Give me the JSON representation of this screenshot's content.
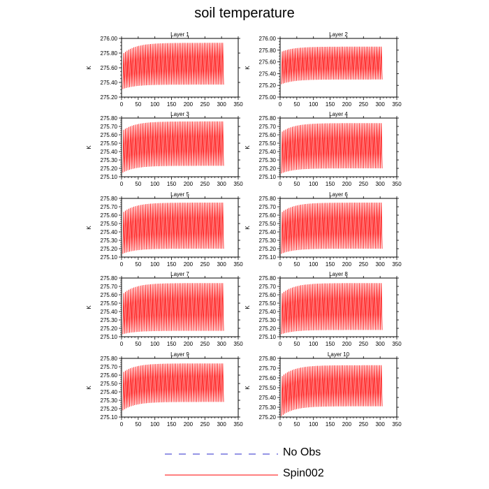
{
  "figure": {
    "title": "soil temperature"
  },
  "legend": [
    {
      "name": "No Obs",
      "color": "#2b2bcc",
      "style": "dashed"
    },
    {
      "name": "Spin002",
      "color": "#ff0000",
      "style": "solid"
    }
  ],
  "chart_data": [
    {
      "type": "line",
      "title": "Layer 1",
      "ylabel": "K",
      "xlim": [
        0,
        350
      ],
      "ylim": [
        275.2,
        276.0
      ],
      "x_ticks": [
        "0",
        "50",
        "100",
        "150",
        "200",
        "250",
        "300",
        "350"
      ],
      "y_ticks": [
        "275.20",
        "275.40",
        "275.60",
        "275.80",
        "276.00"
      ],
      "series": [
        {
          "name": "Spin002",
          "cycles": 60,
          "x_end": 306,
          "low_start": 275.31,
          "low_end": 275.37,
          "high_start": 275.8,
          "high_end": 275.94
        }
      ]
    },
    {
      "type": "line",
      "title": "Layer 2",
      "ylabel": "K",
      "xlim": [
        0,
        350
      ],
      "ylim": [
        275.0,
        276.0
      ],
      "x_ticks": [
        "0",
        "50",
        "100",
        "150",
        "200",
        "250",
        "300",
        "350"
      ],
      "y_ticks": [
        "275.00",
        "275.20",
        "275.40",
        "275.60",
        "275.80",
        "276.00"
      ],
      "series": [
        {
          "name": "Spin002",
          "cycles": 60,
          "x_end": 306,
          "low_start": 275.22,
          "low_end": 275.3,
          "high_start": 275.78,
          "high_end": 275.86
        }
      ]
    },
    {
      "type": "line",
      "title": "Layer 3",
      "ylabel": "K",
      "xlim": [
        0,
        350
      ],
      "ylim": [
        275.1,
        275.8
      ],
      "x_ticks": [
        "0",
        "50",
        "100",
        "150",
        "200",
        "250",
        "300",
        "350"
      ],
      "y_ticks": [
        "275.10",
        "275.20",
        "275.30",
        "275.40",
        "275.50",
        "275.60",
        "275.70",
        "275.80"
      ],
      "series": [
        {
          "name": "Spin002",
          "cycles": 60,
          "x_end": 306,
          "low_start": 275.15,
          "low_end": 275.23,
          "high_start": 275.66,
          "high_end": 275.76
        }
      ]
    },
    {
      "type": "line",
      "title": "Layer 4",
      "ylabel": "K",
      "xlim": [
        0,
        350
      ],
      "ylim": [
        275.1,
        275.8
      ],
      "x_ticks": [
        "0",
        "50",
        "100",
        "150",
        "200",
        "250",
        "300",
        "350"
      ],
      "y_ticks": [
        "275.10",
        "275.20",
        "275.30",
        "275.40",
        "275.50",
        "275.60",
        "275.70",
        "275.80"
      ],
      "series": [
        {
          "name": "Spin002",
          "cycles": 60,
          "x_end": 306,
          "low_start": 275.14,
          "low_end": 275.2,
          "high_start": 275.64,
          "high_end": 275.74
        }
      ]
    },
    {
      "type": "line",
      "title": "Layer 5",
      "ylabel": "K",
      "xlim": [
        0,
        350
      ],
      "ylim": [
        275.1,
        275.8
      ],
      "x_ticks": [
        "0",
        "50",
        "100",
        "150",
        "200",
        "250",
        "300",
        "350"
      ],
      "y_ticks": [
        "275.10",
        "275.20",
        "275.30",
        "275.40",
        "275.50",
        "275.60",
        "275.70",
        "275.80"
      ],
      "series": [
        {
          "name": "Spin002",
          "cycles": 60,
          "x_end": 306,
          "low_start": 275.14,
          "low_end": 275.2,
          "high_start": 275.64,
          "high_end": 275.75
        }
      ]
    },
    {
      "type": "line",
      "title": "Layer 6",
      "ylabel": "K",
      "xlim": [
        0,
        350
      ],
      "ylim": [
        275.1,
        275.8
      ],
      "x_ticks": [
        "0",
        "50",
        "100",
        "150",
        "200",
        "250",
        "300",
        "350"
      ],
      "y_ticks": [
        "275.10",
        "275.20",
        "275.30",
        "275.40",
        "275.50",
        "275.60",
        "275.70",
        "275.80"
      ],
      "series": [
        {
          "name": "Spin002",
          "cycles": 60,
          "x_end": 306,
          "low_start": 275.14,
          "low_end": 275.2,
          "high_start": 275.64,
          "high_end": 275.75
        }
      ]
    },
    {
      "type": "line",
      "title": "Layer 7",
      "ylabel": "K",
      "xlim": [
        0,
        350
      ],
      "ylim": [
        275.1,
        275.8
      ],
      "x_ticks": [
        "0",
        "50",
        "100",
        "150",
        "200",
        "250",
        "300",
        "350"
      ],
      "y_ticks": [
        "275.10",
        "275.20",
        "275.30",
        "275.40",
        "275.50",
        "275.60",
        "275.70",
        "275.80"
      ],
      "series": [
        {
          "name": "Spin002",
          "cycles": 60,
          "x_end": 306,
          "low_start": 275.13,
          "low_end": 275.17,
          "high_start": 275.62,
          "high_end": 275.74
        }
      ]
    },
    {
      "type": "line",
      "title": "Layer 8",
      "ylabel": "K",
      "xlim": [
        0,
        350
      ],
      "ylim": [
        275.1,
        275.8
      ],
      "x_ticks": [
        "0",
        "50",
        "100",
        "150",
        "200",
        "250",
        "300",
        "350"
      ],
      "y_ticks": [
        "275.10",
        "275.20",
        "275.30",
        "275.40",
        "275.50",
        "275.60",
        "275.70",
        "275.80"
      ],
      "series": [
        {
          "name": "Spin002",
          "cycles": 60,
          "x_end": 306,
          "low_start": 275.13,
          "low_end": 275.18,
          "high_start": 275.62,
          "high_end": 275.74
        }
      ]
    },
    {
      "type": "line",
      "title": "Layer 9",
      "ylabel": "K",
      "xlim": [
        0,
        350
      ],
      "ylim": [
        275.1,
        275.8
      ],
      "x_ticks": [
        "0",
        "50",
        "100",
        "150",
        "200",
        "250",
        "300",
        "350"
      ],
      "y_ticks": [
        "275.10",
        "275.20",
        "275.30",
        "275.40",
        "275.50",
        "275.60",
        "275.70",
        "275.80"
      ],
      "series": [
        {
          "name": "Spin002",
          "cycles": 60,
          "x_end": 306,
          "low_start": 275.18,
          "low_end": 275.28,
          "high_start": 275.64,
          "high_end": 275.74
        }
      ]
    },
    {
      "type": "line",
      "title": "Layer 10",
      "ylabel": "K",
      "xlim": [
        0,
        350
      ],
      "ylim": [
        275.2,
        275.8
      ],
      "x_ticks": [
        "0",
        "50",
        "100",
        "150",
        "200",
        "250",
        "300",
        "350"
      ],
      "y_ticks": [
        "275.20",
        "275.30",
        "275.40",
        "275.50",
        "275.60",
        "275.70",
        "275.80"
      ],
      "series": [
        {
          "name": "Spin002",
          "cycles": 60,
          "x_end": 306,
          "low_start": 275.21,
          "low_end": 275.31,
          "high_start": 275.62,
          "high_end": 275.73
        }
      ]
    }
  ]
}
